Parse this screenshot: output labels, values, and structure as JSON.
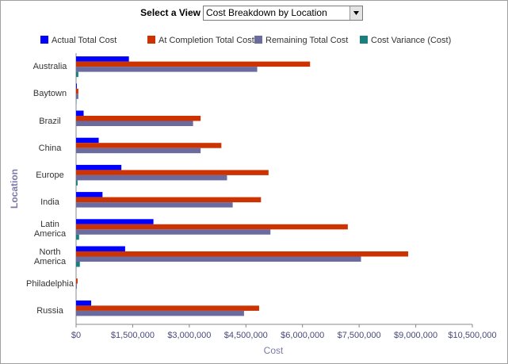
{
  "view_selector": {
    "label": "Select a View",
    "selected": "Cost Breakdown by Location"
  },
  "chart_data": {
    "type": "hbar",
    "x_label": "Cost",
    "y_label": "Location",
    "categories": [
      "Australia",
      "Baytown",
      "Brazil",
      "China",
      "Europe",
      "India",
      "Latin America",
      "North America",
      "Philadelphia",
      "Russia"
    ],
    "series": [
      {
        "name": "Actual Total Cost",
        "color": "#0000ff",
        "values": [
          1400000,
          20000,
          200000,
          600000,
          1200000,
          700000,
          2050000,
          1300000,
          0,
          400000
        ]
      },
      {
        "name": "At Completion Total Cost",
        "color": "#cc3300",
        "values": [
          6200000,
          60000,
          3300000,
          3850000,
          5100000,
          4900000,
          7200000,
          8800000,
          40000,
          4850000
        ]
      },
      {
        "name": "Remaining Total Cost",
        "color": "#6b6b9f",
        "values": [
          4800000,
          60000,
          3100000,
          3300000,
          4000000,
          4150000,
          5150000,
          7550000,
          20000,
          4450000
        ]
      },
      {
        "name": "Cost Variance (Cost)",
        "color": "#1a7f7f",
        "values": [
          60000,
          10000,
          0,
          0,
          40000,
          0,
          80000,
          100000,
          0,
          0
        ]
      }
    ],
    "xlim": [
      0,
      10500000
    ],
    "xticks": [
      {
        "value": 0,
        "label": "$0"
      },
      {
        "value": 1500000,
        "label": "$1,500,000"
      },
      {
        "value": 3000000,
        "label": "$3,000,000"
      },
      {
        "value": 4500000,
        "label": "$4,500,000"
      },
      {
        "value": 6000000,
        "label": "$6,000,000"
      },
      {
        "value": 7500000,
        "label": "$7,500,000"
      },
      {
        "value": 9000000,
        "label": "$9,000,000"
      },
      {
        "value": 10500000,
        "label": "$10,500,000"
      }
    ],
    "grid": false,
    "legend": "top"
  }
}
